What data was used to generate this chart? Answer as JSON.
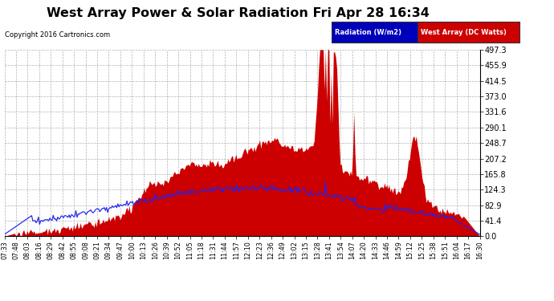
{
  "title": "West Array Power & Solar Radiation Fri Apr 28 16:34",
  "copyright": "Copyright 2016 Cartronics.com",
  "legend_radiation": "Radiation (W/m2)",
  "legend_west_array": "West Array (DC Watts)",
  "yticks": [
    0.0,
    41.4,
    82.9,
    124.3,
    165.8,
    207.2,
    248.7,
    290.1,
    331.6,
    373.0,
    414.5,
    455.9,
    497.3
  ],
  "ymax": 497.3,
  "background_color": "#ffffff",
  "grid_color": "#aaaaaa",
  "fill_color": "#cc0000",
  "line_color": "#2222ee",
  "title_fontsize": 12,
  "xtick_labels": [
    "07:33",
    "07:48",
    "08:03",
    "08:16",
    "08:29",
    "08:42",
    "08:55",
    "09:08",
    "09:21",
    "09:34",
    "09:47",
    "10:00",
    "10:13",
    "10:26",
    "10:39",
    "10:52",
    "11:05",
    "11:18",
    "11:31",
    "11:44",
    "11:57",
    "12:10",
    "12:23",
    "12:36",
    "12:49",
    "13:02",
    "13:15",
    "13:28",
    "13:41",
    "13:54",
    "14:07",
    "14:20",
    "14:33",
    "14:46",
    "14:59",
    "15:12",
    "15:25",
    "15:38",
    "15:51",
    "16:04",
    "16:17",
    "16:30"
  ],
  "n_points": 420
}
